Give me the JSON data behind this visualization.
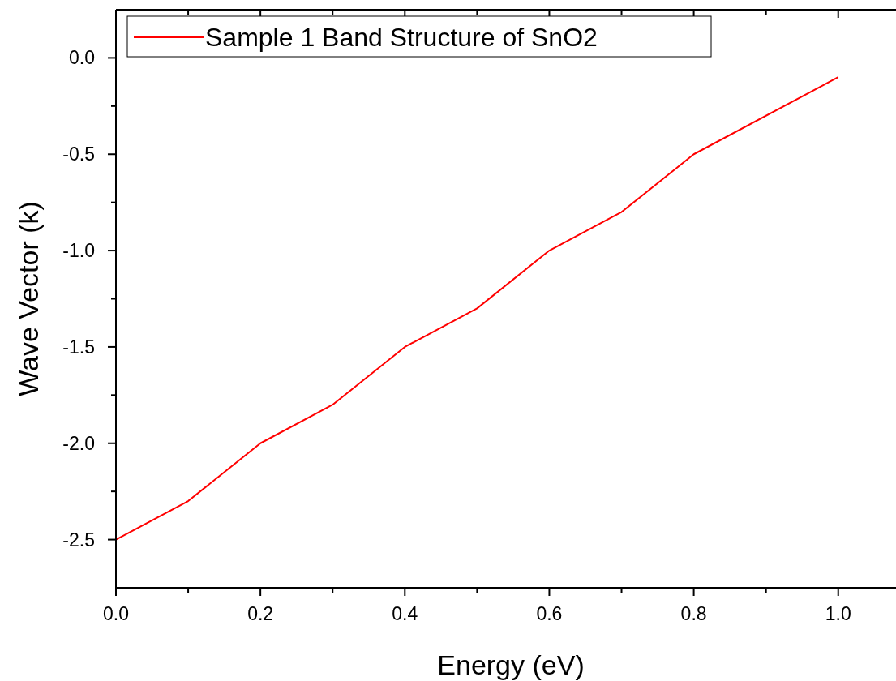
{
  "chart_data": {
    "type": "line",
    "xlabel": "Energy (eV)",
    "ylabel": "Wave Vector (k)",
    "x": [
      0,
      0.1,
      0.2,
      0.3,
      0.4,
      0.5,
      0.6,
      0.7,
      0.8,
      1.0
    ],
    "series": [
      {
        "name": "Sample 1 Band Structure of SnO2",
        "color": "#ff0000",
        "values": [
          -2.5,
          -2.3,
          -2.0,
          -1.8,
          -1.5,
          -1.3,
          -1.0,
          -0.8,
          -0.5,
          -0.1
        ]
      }
    ],
    "xlim": [
      0,
      1.08
    ],
    "ylim": [
      -2.75,
      0.25
    ],
    "xticks": [
      {
        "value": 0,
        "label": "0.0"
      },
      {
        "value": 0.1,
        "label": null
      },
      {
        "value": 0.2,
        "label": "0.2"
      },
      {
        "value": 0.3,
        "label": null
      },
      {
        "value": 0.4,
        "label": "0.4"
      },
      {
        "value": 0.5,
        "label": null
      },
      {
        "value": 0.6,
        "label": "0.6"
      },
      {
        "value": 0.7,
        "label": null
      },
      {
        "value": 0.8,
        "label": "0.8"
      },
      {
        "value": 0.9,
        "label": null
      },
      {
        "value": 1.0,
        "label": "1.0"
      }
    ],
    "yticks": [
      {
        "value": -2.5,
        "label": "-2.5"
      },
      {
        "value": -2.25,
        "label": null
      },
      {
        "value": -2.0,
        "label": "-2.0"
      },
      {
        "value": -1.75,
        "label": null
      },
      {
        "value": -1.5,
        "label": "-1.5"
      },
      {
        "value": -1.25,
        "label": null
      },
      {
        "value": -1.0,
        "label": "-1.0"
      },
      {
        "value": -0.75,
        "label": null
      },
      {
        "value": -0.5,
        "label": "-0.5"
      },
      {
        "value": -0.25,
        "label": null
      },
      {
        "value": 0,
        "label": "0.0"
      }
    ],
    "legend": "top left",
    "grid": false,
    "marker": "none",
    "line_style": "solid"
  }
}
